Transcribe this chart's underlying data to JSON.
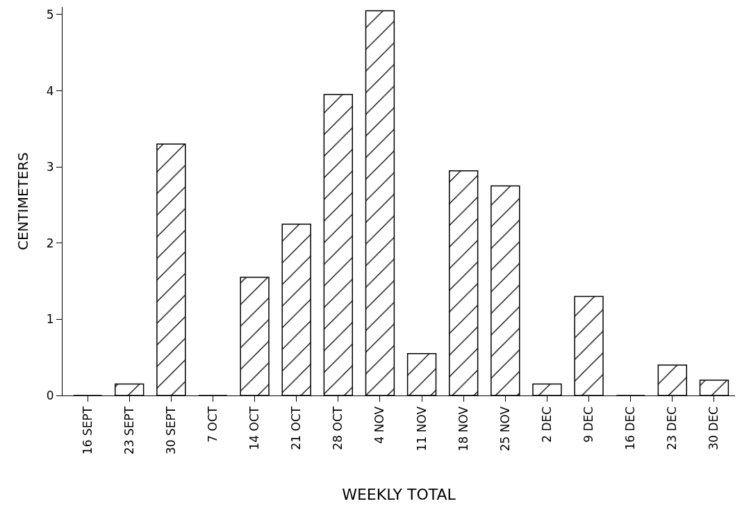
{
  "chart_data": {
    "type": "bar",
    "xlabel": "WEEKLY TOTAL",
    "ylabel": "CENTIMETERS",
    "categories": [
      "16 SEPT",
      "23 SEPT",
      "30 SEPT",
      "7 OCT",
      "14 OCT",
      "21 OCT",
      "28 OCT",
      "4 NOV",
      "11 NOV",
      "18 NOV",
      "25 NOV",
      "2 DEC",
      "9 DEC",
      "16 DEC",
      "23 DEC",
      "30 DEC"
    ],
    "values": [
      0,
      0.15,
      3.3,
      0,
      1.55,
      2.25,
      3.95,
      5.05,
      0.55,
      2.95,
      2.75,
      0.15,
      1.3,
      0,
      0.4,
      0.2
    ],
    "color": "#000000",
    "ylim": [
      0,
      5.1
    ],
    "yticks": [
      0,
      1,
      2,
      3,
      4,
      5
    ],
    "grid": false,
    "legend": false
  }
}
